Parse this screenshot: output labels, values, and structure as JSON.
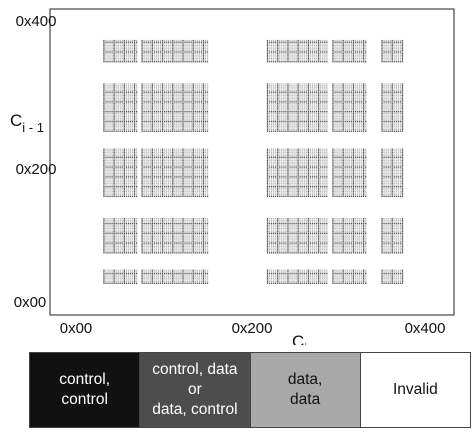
{
  "chart_data": {
    "type": "scatter",
    "xlabel": "C",
    "xlabel_subscript": "i",
    "ylabel": "C",
    "ylabel_subscript": "i - 1",
    "x_ticks": [
      "0x00",
      "0x200",
      "0x400"
    ],
    "y_ticks": [
      "0x00",
      "0x200",
      "0x400"
    ],
    "x_tick_values": [
      0,
      512,
      1024
    ],
    "y_tick_values": [
      0,
      512,
      1024
    ],
    "xlim": [
      0,
      1024
    ],
    "ylim": [
      0,
      1024
    ],
    "grid": false,
    "legend": [
      {
        "label": "control,\ncontrol",
        "color": "#111111",
        "text_color": "#ffffff"
      },
      {
        "label": "control, data\nor\ndata, control",
        "color": "#4d4d4d",
        "text_color": "#ffffff"
      },
      {
        "label": "data,\ndata",
        "color": "#a9a9a9",
        "text_color": "#111111"
      },
      {
        "label": "Invalid",
        "color": "#ffffff",
        "text_color": "#111111"
      }
    ],
    "valid_x_blocks": [
      [
        80,
        176
      ],
      [
        192,
        384
      ],
      [
        560,
        736
      ],
      [
        752,
        848
      ],
      [
        896,
        960
      ]
    ],
    "valid_y_blocks": [
      [
        64,
        112
      ],
      [
        176,
        304
      ],
      [
        384,
        560
      ],
      [
        624,
        800
      ],
      [
        880,
        960
      ]
    ],
    "marker_color": "#bdbdbd",
    "marker_dark_color": "#555555"
  }
}
